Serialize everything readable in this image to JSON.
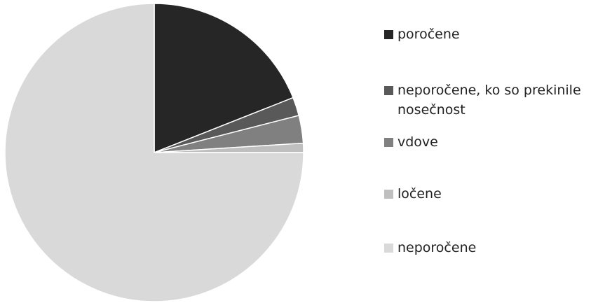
{
  "chart_data": {
    "type": "pie",
    "categories": [
      "poročene",
      "neporočene, ko so prekinile nosečnost",
      "vdove",
      "ločene",
      "neporočene"
    ],
    "values": [
      19,
      2,
      3,
      1,
      75
    ],
    "colors": [
      "#262626",
      "#595959",
      "#808080",
      "#bfbfbf",
      "#d9d9d9"
    ],
    "legend": "right"
  }
}
